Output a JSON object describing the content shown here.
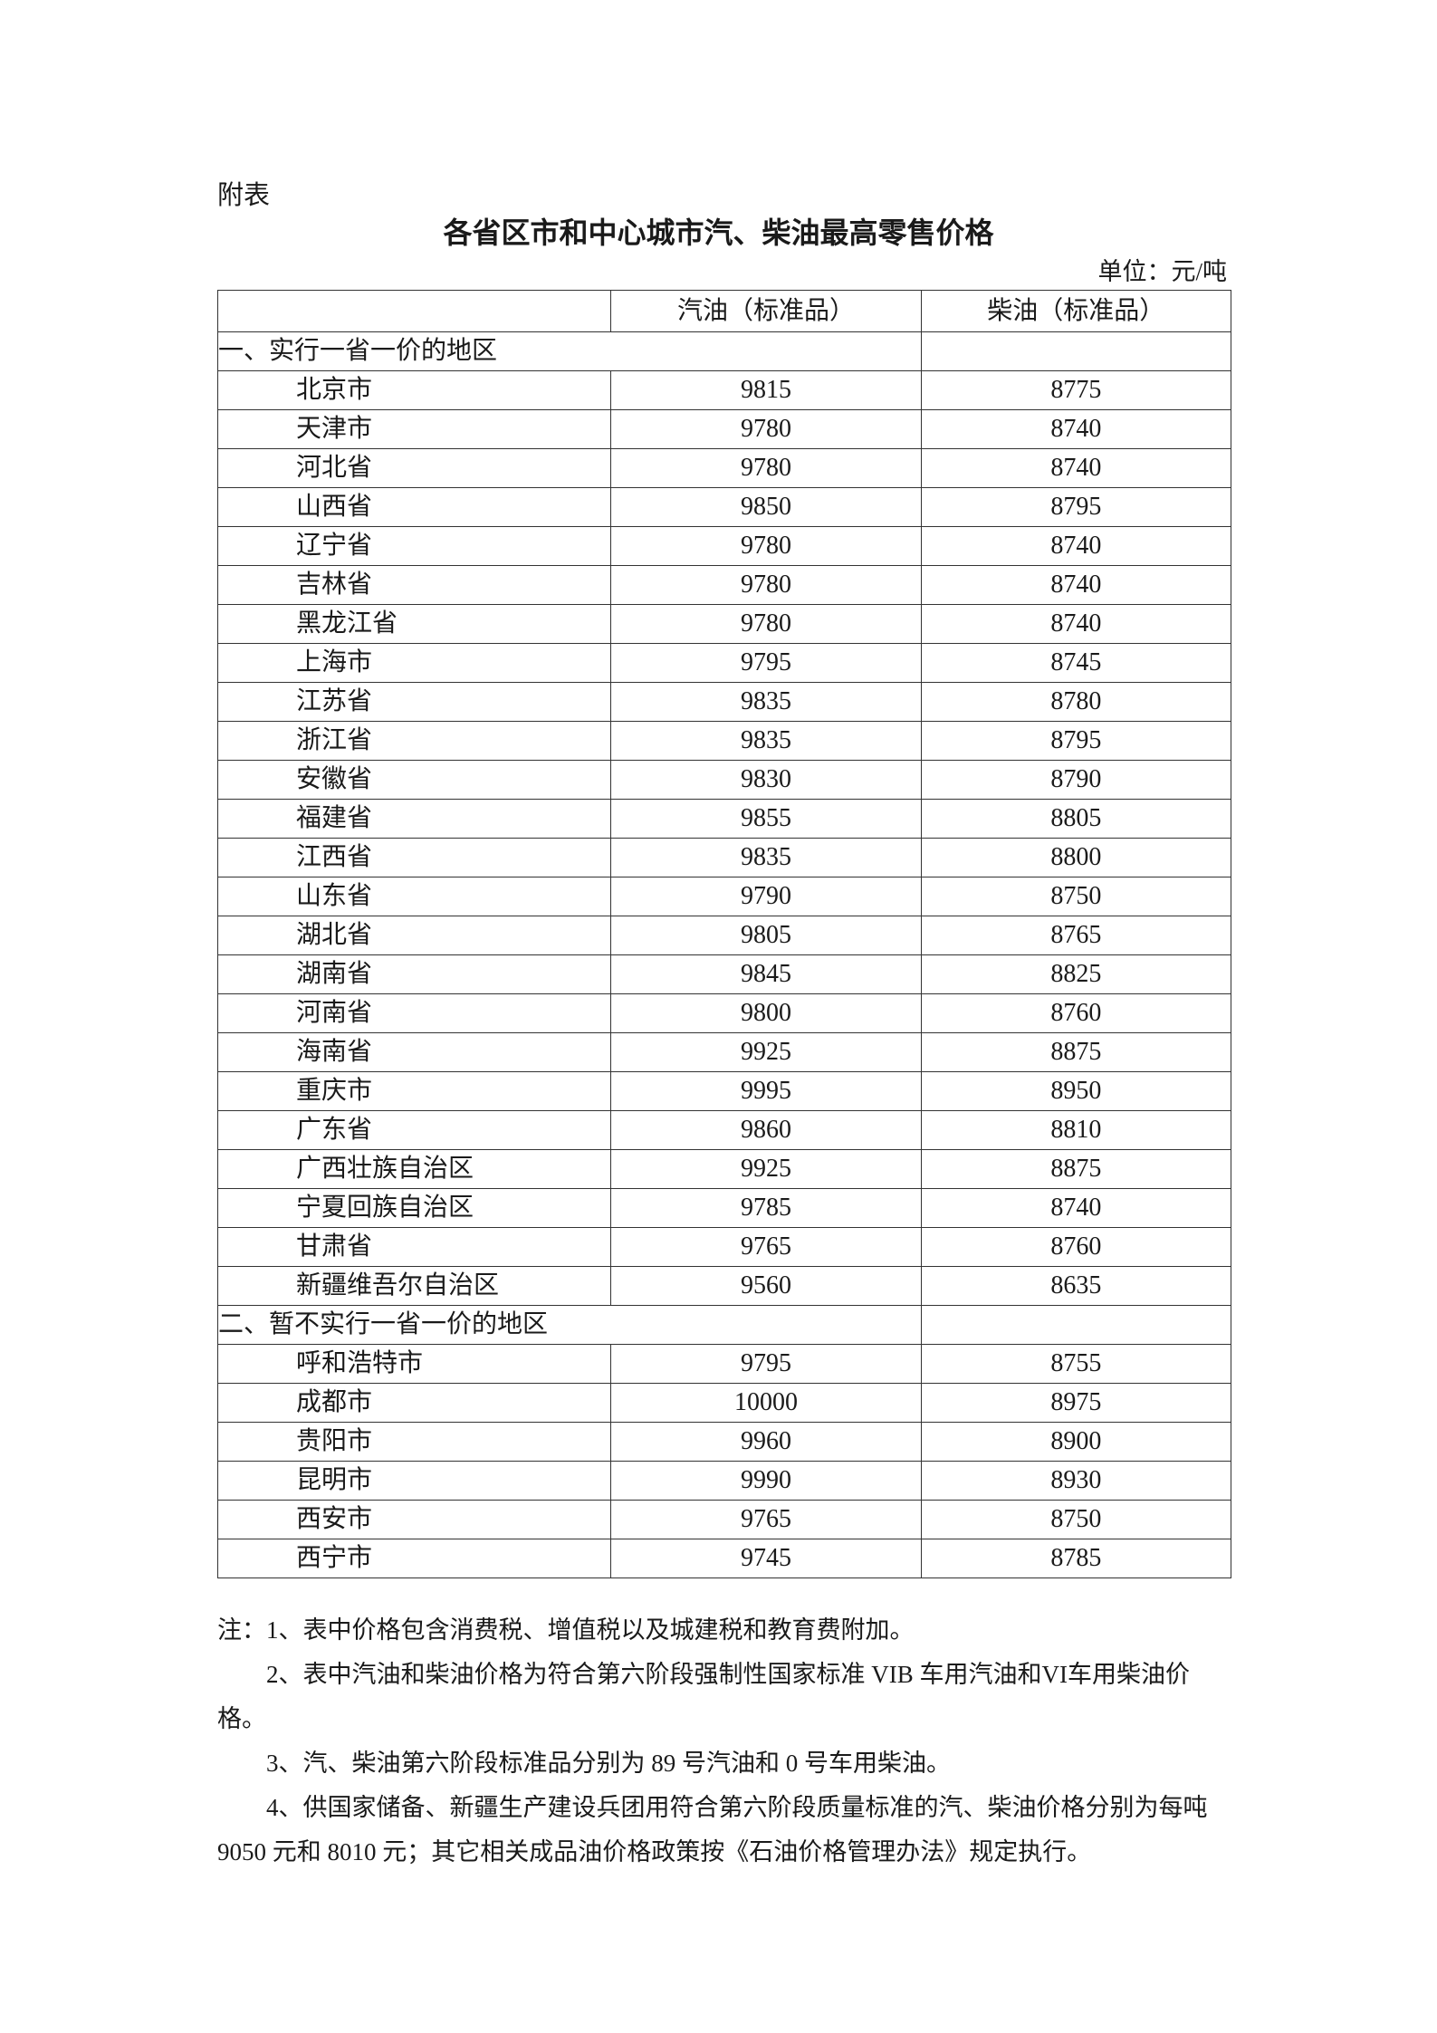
{
  "annex_label": "附表",
  "title": "各省区市和中心城市汽、柴油最高零售价格",
  "unit": "单位：元/吨",
  "table": {
    "headers": [
      "",
      "汽油（标准品）",
      "柴油（标准品）"
    ],
    "sections": [
      {
        "label": "一、实行一省一价的地区",
        "rows": [
          {
            "region": "北京市",
            "gasoline": "9815",
            "diesel": "8775"
          },
          {
            "region": "天津市",
            "gasoline": "9780",
            "diesel": "8740"
          },
          {
            "region": "河北省",
            "gasoline": "9780",
            "diesel": "8740"
          },
          {
            "region": "山西省",
            "gasoline": "9850",
            "diesel": "8795"
          },
          {
            "region": "辽宁省",
            "gasoline": "9780",
            "diesel": "8740"
          },
          {
            "region": "吉林省",
            "gasoline": "9780",
            "diesel": "8740"
          },
          {
            "region": "黑龙江省",
            "gasoline": "9780",
            "diesel": "8740"
          },
          {
            "region": "上海市",
            "gasoline": "9795",
            "diesel": "8745"
          },
          {
            "region": "江苏省",
            "gasoline": "9835",
            "diesel": "8780"
          },
          {
            "region": "浙江省",
            "gasoline": "9835",
            "diesel": "8795"
          },
          {
            "region": "安徽省",
            "gasoline": "9830",
            "diesel": "8790"
          },
          {
            "region": "福建省",
            "gasoline": "9855",
            "diesel": "8805"
          },
          {
            "region": "江西省",
            "gasoline": "9835",
            "diesel": "8800"
          },
          {
            "region": "山东省",
            "gasoline": "9790",
            "diesel": "8750"
          },
          {
            "region": "湖北省",
            "gasoline": "9805",
            "diesel": "8765"
          },
          {
            "region": "湖南省",
            "gasoline": "9845",
            "diesel": "8825"
          },
          {
            "region": "河南省",
            "gasoline": "9800",
            "diesel": "8760"
          },
          {
            "region": "海南省",
            "gasoline": "9925",
            "diesel": "8875"
          },
          {
            "region": "重庆市",
            "gasoline": "9995",
            "diesel": "8950"
          },
          {
            "region": "广东省",
            "gasoline": "9860",
            "diesel": "8810"
          },
          {
            "region": "广西壮族自治区",
            "gasoline": "9925",
            "diesel": "8875"
          },
          {
            "region": "宁夏回族自治区",
            "gasoline": "9785",
            "diesel": "8740"
          },
          {
            "region": "甘肃省",
            "gasoline": "9765",
            "diesel": "8760"
          },
          {
            "region": "新疆维吾尔自治区",
            "gasoline": "9560",
            "diesel": "8635"
          }
        ]
      },
      {
        "label": "二、暂不实行一省一价的地区",
        "rows": [
          {
            "region": "呼和浩特市",
            "gasoline": "9795",
            "diesel": "8755"
          },
          {
            "region": "成都市",
            "gasoline": "10000",
            "diesel": "8975"
          },
          {
            "region": "贵阳市",
            "gasoline": "9960",
            "diesel": "8900"
          },
          {
            "region": "昆明市",
            "gasoline": "9990",
            "diesel": "8930"
          },
          {
            "region": "西安市",
            "gasoline": "9765",
            "diesel": "8750"
          },
          {
            "region": "西宁市",
            "gasoline": "9745",
            "diesel": "8785"
          }
        ]
      }
    ]
  },
  "notes": [
    "注：1、表中价格包含消费税、增值税以及城建税和教育费附加。",
    "2、表中汽油和柴油价格为符合第六阶段强制性国家标准 VIB 车用汽油和VI车用柴油价格。",
    "3、汽、柴油第六阶段标准品分别为 89 号汽油和 0 号车用柴油。",
    "4、供国家储备、新疆生产建设兵团用符合第六阶段质量标准的汽、柴油价格分别为每吨 9050 元和 8010 元；其它相关成品油价格政策按《石油价格管理办法》规定执行。"
  ]
}
